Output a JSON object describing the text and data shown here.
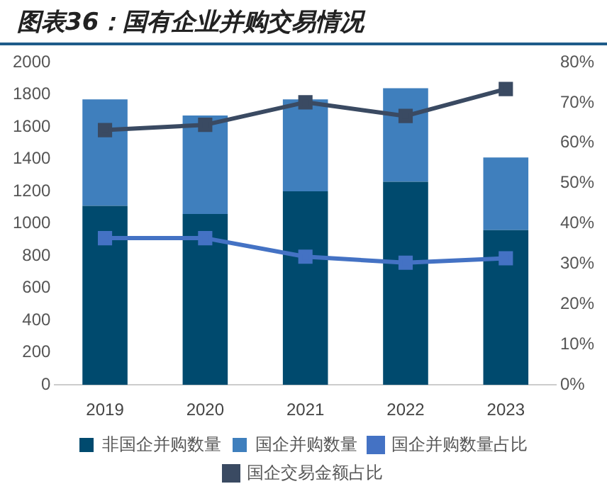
{
  "chart_data": {
    "type": "bar",
    "title": "图表36：国有企业并购交易情况",
    "stacked": true,
    "categories": [
      "2019",
      "2020",
      "2021",
      "2022",
      "2023"
    ],
    "series": [
      {
        "name": "非国企并购数量",
        "color": "#004a6e",
        "values": [
          1110,
          1060,
          1200,
          1260,
          960
        ]
      },
      {
        "name": "国企并购数量",
        "color": "#3f7fbd",
        "values": [
          660,
          610,
          570,
          580,
          450
        ]
      },
      {
        "name": "国企并购数量占比",
        "type": "line",
        "axis": "y2",
        "color": "#4472c4",
        "marker": "square",
        "values": [
          36.4,
          36.4,
          31.8,
          30.3,
          31.4
        ]
      },
      {
        "name": "国企交易金额占比",
        "type": "line",
        "axis": "y2",
        "color": "#3a4a62",
        "marker": "square",
        "values": [
          63.2,
          64.5,
          70.1,
          66.7,
          73.4
        ]
      }
    ],
    "ylim": [
      0,
      2000
    ],
    "yticks": [
      0,
      200,
      400,
      600,
      800,
      1000,
      1200,
      1400,
      1600,
      1800,
      2000
    ],
    "y2lim": [
      0,
      80
    ],
    "y2ticks": [
      {
        "value": 0,
        "label": "0%"
      },
      {
        "value": 10,
        "label": "10%"
      },
      {
        "value": 20,
        "label": "20%"
      },
      {
        "value": 30,
        "label": "30%"
      },
      {
        "value": 40,
        "label": "40%"
      },
      {
        "value": 50,
        "label": "50%"
      },
      {
        "value": 60,
        "label": "60%"
      },
      {
        "value": 70,
        "label": "70%"
      },
      {
        "value": 80,
        "label": "80%"
      }
    ],
    "grid": false,
    "legend": "bottom"
  }
}
